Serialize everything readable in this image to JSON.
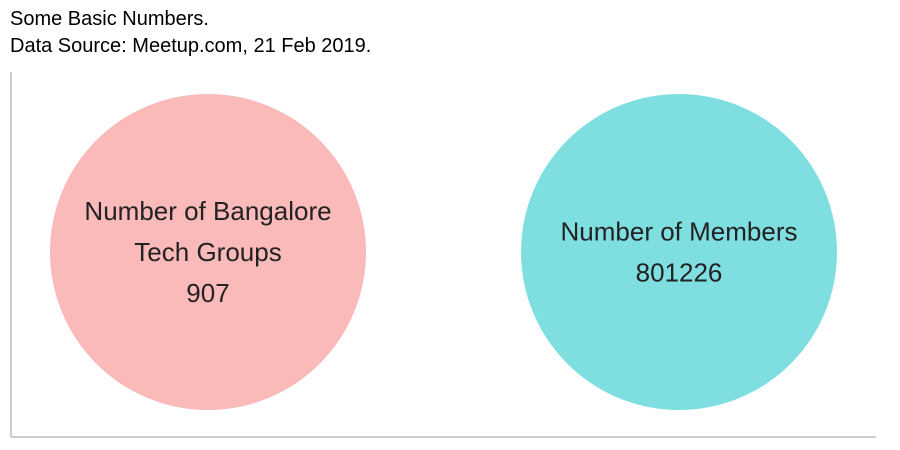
{
  "header": {
    "title": "Some Basic Numbers.",
    "subtitle": "Data Source: Meetup.com, 21 Feb 2019."
  },
  "chart_data": {
    "type": "bubble",
    "title": "Some Basic Numbers.",
    "subtitle": "Data Source: Meetup.com, 21 Feb 2019.",
    "grid": false,
    "bubbles": [
      {
        "label_lines": [
          "Number of Bangalore",
          "Tech Groups"
        ],
        "value": 907,
        "color": "#fababa"
      },
      {
        "label_lines": [
          "Number of Members"
        ],
        "value": 801226,
        "color": "#7fdfe0"
      }
    ]
  }
}
